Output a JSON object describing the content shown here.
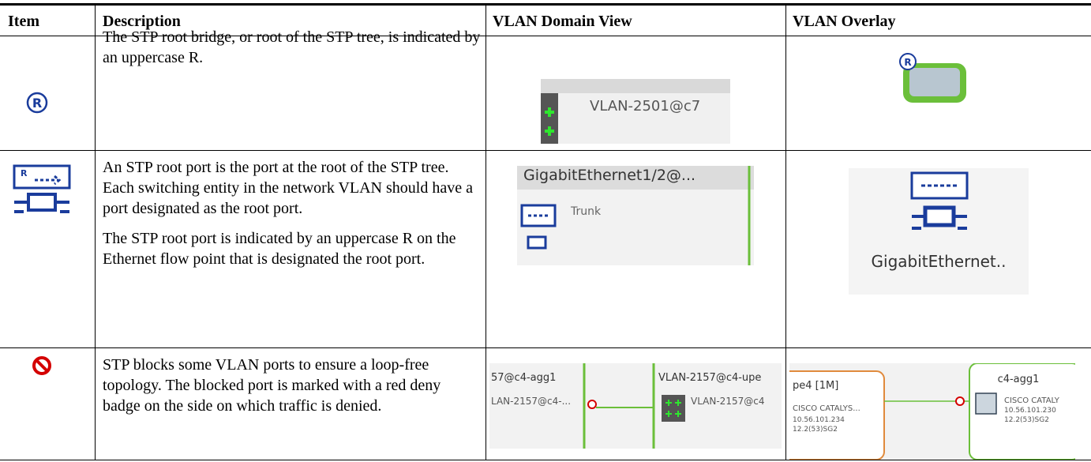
{
  "table": {
    "headers": [
      "Item",
      "Description",
      "VLAN Domain View",
      "VLAN Overlay"
    ],
    "rows": [
      {
        "item_icon_label": "R",
        "description": [
          "The STP root bridge, or root of the STP tree, is indicated by an uppercase R."
        ],
        "domain_view": [
          "VLAN-2501@c7"
        ],
        "overlay": [
          "R"
        ]
      },
      {
        "item_icon_label": "R",
        "description": [
          "An STP root port is the port at the root of the STP tree. Each switching entity in the network VLAN should have a port designated as the root port.",
          "The STP root port is indicated by an uppercase R on the Ethernet flow point that is designated the root port."
        ],
        "domain_view": [
          "GigabitEthernet1/2@...",
          "Trunk"
        ],
        "overlay": [
          "GigabitEthernet.."
        ]
      },
      {
        "description": [
          "STP blocks some VLAN ports to ensure a loop-free topology. The blocked port is marked with a red deny badge on the side on which traffic is denied."
        ],
        "domain_view": [
          "57@c4-agg1",
          "LAN-2157@c4-...",
          "VLAN-2157@c4-upe",
          "VLAN-2157@c4"
        ],
        "overlay": [
          "pe4 [1M]",
          "CISCO CATALYS...",
          "10.56.101.234",
          "12.2(53)SG2",
          "c4-agg1",
          "CISCO CATALY",
          "10.56.101.230",
          "12.2(53)SG2"
        ]
      }
    ]
  }
}
